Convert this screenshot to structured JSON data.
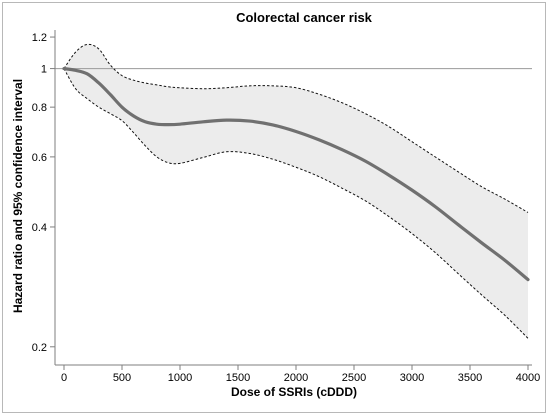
{
  "chart_data": {
    "type": "line",
    "title": "Colorectal cancer risk",
    "xlabel": "Dose of SSRIs (cDDD)",
    "ylabel": "Hazard ratio and 95% confidence interval",
    "xlim": [
      0,
      4000
    ],
    "ylim": [
      0.18,
      1.25
    ],
    "y_scale": "log",
    "x_ticks": [
      0,
      500,
      1000,
      1500,
      2000,
      2500,
      3000,
      3500,
      4000
    ],
    "x_tick_labels": [
      "0",
      "500",
      "1000",
      "1500",
      "2000",
      "2500",
      "3000",
      "3500",
      "4000"
    ],
    "y_ticks": [
      0.2,
      0.4,
      0.6,
      0.8,
      1,
      1.2
    ],
    "y_tick_labels": [
      "0.2",
      "0.4",
      "0.6",
      "0.8",
      "1",
      "1.2"
    ],
    "reference_line": 1,
    "grid": false,
    "colors": {
      "estimate": "#707070",
      "band_fill": "#ececec",
      "bounds": "#111111",
      "reference": "#9a9a9a",
      "axis": "#7f7f7f"
    },
    "x": [
      0,
      100,
      200,
      300,
      400,
      500,
      600,
      700,
      800,
      900,
      1000,
      1200,
      1400,
      1600,
      1800,
      2000,
      2200,
      2400,
      2600,
      2800,
      3000,
      3200,
      3400,
      3600,
      3800,
      4000
    ],
    "series": [
      {
        "role": "estimate",
        "values": [
          1.0,
          0.99,
          0.97,
          0.92,
          0.86,
          0.8,
          0.76,
          0.735,
          0.725,
          0.723,
          0.725,
          0.735,
          0.742,
          0.738,
          0.722,
          0.695,
          0.662,
          0.625,
          0.585,
          0.54,
          0.495,
          0.45,
          0.405,
          0.365,
          0.33,
          0.295
        ]
      },
      {
        "role": "upper_bound",
        "values": [
          1.0,
          1.1,
          1.15,
          1.12,
          1.02,
          0.96,
          0.935,
          0.92,
          0.91,
          0.9,
          0.895,
          0.89,
          0.895,
          0.905,
          0.905,
          0.895,
          0.862,
          0.82,
          0.77,
          0.715,
          0.655,
          0.6,
          0.55,
          0.505,
          0.47,
          0.435
        ]
      },
      {
        "role": "lower_bound",
        "values": [
          1.0,
          0.89,
          0.84,
          0.8,
          0.77,
          0.74,
          0.69,
          0.64,
          0.6,
          0.58,
          0.578,
          0.598,
          0.618,
          0.612,
          0.592,
          0.565,
          0.535,
          0.5,
          0.465,
          0.425,
          0.385,
          0.345,
          0.305,
          0.27,
          0.24,
          0.21
        ]
      }
    ]
  }
}
